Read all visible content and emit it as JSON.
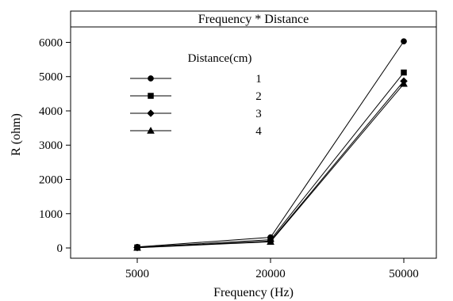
{
  "chart_data": {
    "type": "line",
    "title": "Frequency * Distance",
    "xlabel": "Frequency (Hz)",
    "ylabel": "R (ohm)",
    "categories": [
      "5000",
      "20000",
      "50000"
    ],
    "yticks": [
      "0",
      "1000",
      "2000",
      "3000",
      "4000",
      "5000",
      "6000"
    ],
    "ylim": [
      -300,
      6450
    ],
    "grid": false,
    "legend": {
      "title": "Distance(cm)",
      "position": "top-left"
    },
    "series": [
      {
        "name": "1",
        "marker": "circle",
        "values": [
          30,
          310,
          6030
        ]
      },
      {
        "name": "2",
        "marker": "square",
        "values": [
          15,
          240,
          5120
        ]
      },
      {
        "name": "3",
        "marker": "diamond",
        "values": [
          10,
          200,
          4870
        ]
      },
      {
        "name": "4",
        "marker": "triangle",
        "values": [
          5,
          180,
          4790
        ]
      }
    ]
  }
}
